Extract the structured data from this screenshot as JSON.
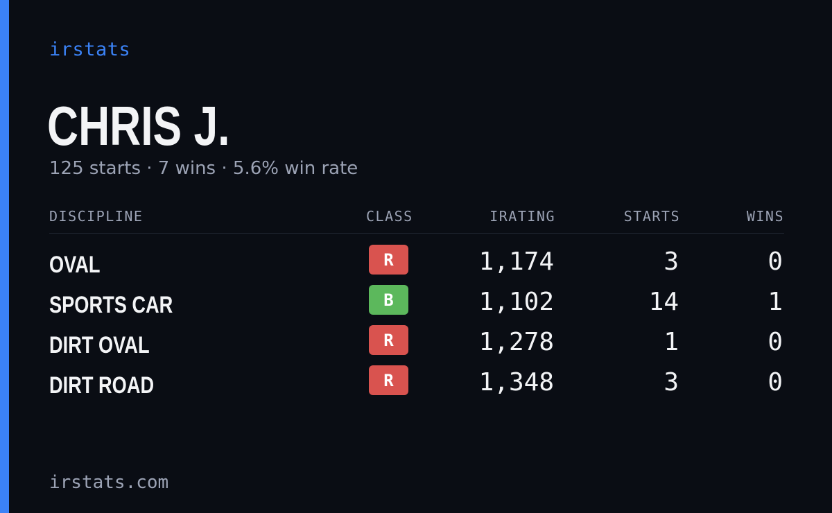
{
  "brand": "irstats",
  "driver": {
    "name": "CHRIS J.",
    "summary": "125 starts · 7 wins · 5.6% win rate"
  },
  "table": {
    "headers": {
      "discipline": "DISCIPLINE",
      "class": "CLASS",
      "irating": "IRATING",
      "starts": "STARTS",
      "wins": "WINS"
    },
    "rows": [
      {
        "discipline": "OVAL",
        "class": "R",
        "class_color": "#d9534f",
        "irating": "1,174",
        "starts": "3",
        "wins": "0"
      },
      {
        "discipline": "SPORTS CAR",
        "class": "B",
        "class_color": "#5cb85c",
        "irating": "1,102",
        "starts": "14",
        "wins": "1"
      },
      {
        "discipline": "DIRT OVAL",
        "class": "R",
        "class_color": "#d9534f",
        "irating": "1,278",
        "starts": "1",
        "wins": "0"
      },
      {
        "discipline": "DIRT ROAD",
        "class": "R",
        "class_color": "#d9534f",
        "irating": "1,348",
        "starts": "3",
        "wins": "0"
      }
    ]
  },
  "footer": "irstats.com",
  "colors": {
    "accent": "#3b82f6",
    "background": "#0a0d14"
  }
}
